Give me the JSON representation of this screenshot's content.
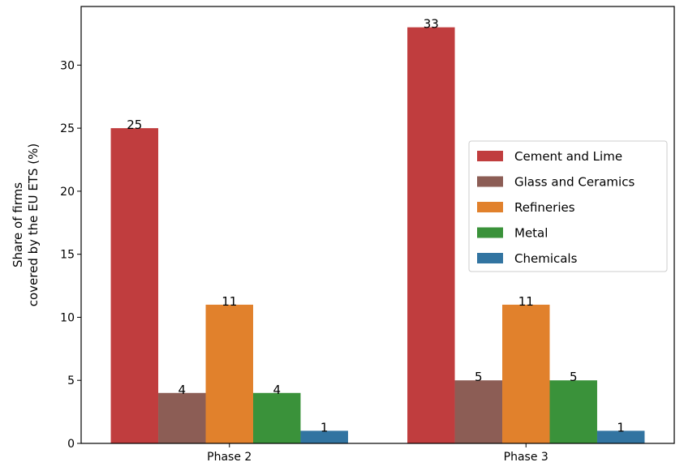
{
  "chart_data": {
    "type": "bar",
    "categories": [
      "Phase 2",
      "Phase 3"
    ],
    "series": [
      {
        "name": "Cement and Lime",
        "color": "#c03d3e",
        "values": [
          25,
          33
        ]
      },
      {
        "name": "Glass and Ceramics",
        "color": "#8c5d55",
        "values": [
          4,
          5
        ]
      },
      {
        "name": "Refineries",
        "color": "#e1812c",
        "values": [
          11,
          11
        ]
      },
      {
        "name": "Metal",
        "color": "#3a923a",
        "values": [
          4,
          5
        ]
      },
      {
        "name": "Chemicals",
        "color": "#3274a1",
        "values": [
          1,
          1
        ]
      }
    ],
    "title": "",
    "xlabel": "",
    "ylabel": [
      "Share of firms",
      "covered by the EU ETS (%)"
    ],
    "ylim": [
      0,
      34.65
    ],
    "yticks": [
      0,
      5,
      10,
      15,
      20,
      25,
      30
    ],
    "grid": false,
    "legend_position": "center-right"
  }
}
